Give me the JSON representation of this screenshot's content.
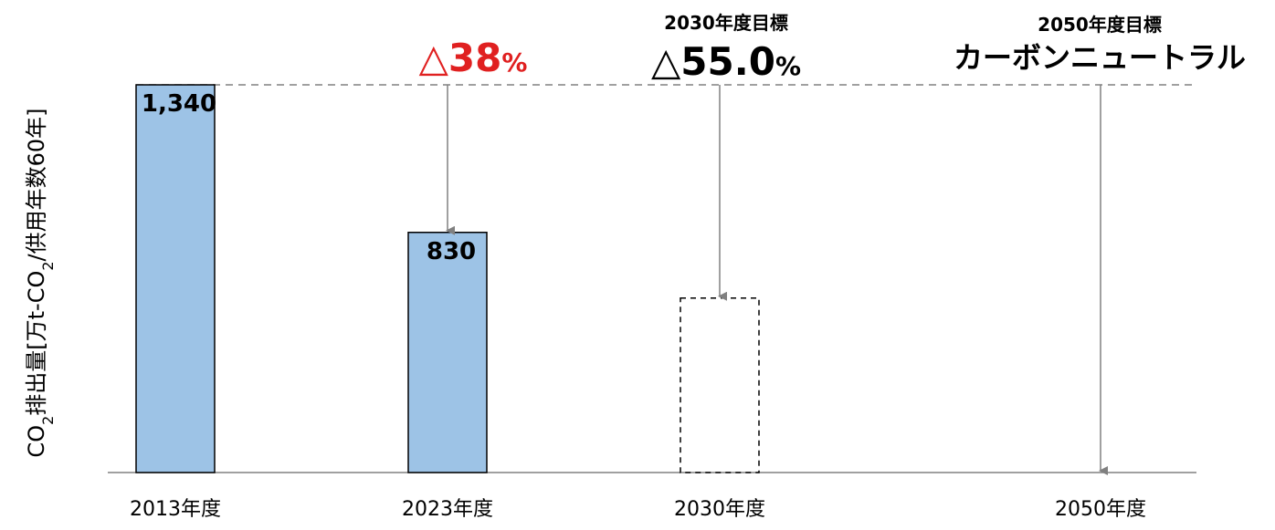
{
  "chart_data": {
    "type": "bar",
    "title": "",
    "ylabel": {
      "prefix": "CO",
      "sub": "2",
      "middle": "排出量[万t-CO",
      "sub2": "2",
      "suffix": "/供用年数60年]"
    },
    "xlabel": "",
    "ylim": [
      0,
      1340
    ],
    "grid": false,
    "categories": [
      "2013年度",
      "2023年度",
      "2030年度",
      "2050年度"
    ],
    "values": [
      1340,
      830,
      603,
      0
    ],
    "value_labels": [
      "1,340",
      "830",
      "",
      ""
    ],
    "bar_style": [
      "solid",
      "solid",
      "dashed",
      "none"
    ],
    "colors": {
      "bar_fill": "#9dc3e6",
      "bar_stroke": "#000000",
      "arrow": "#808080",
      "reference_line": "#808080",
      "highlight": "#e02020"
    },
    "reference_line_value": 1340,
    "annotations": [
      {
        "category": "2023年度",
        "heading": "",
        "text_main": "△38",
        "text_unit": "%",
        "color": "#e02020"
      },
      {
        "category": "2030年度",
        "heading": "2030年度目標",
        "text_main": "△55.0",
        "text_unit": "%",
        "color": "#000000"
      },
      {
        "category": "2050年度",
        "heading": "2050年度目標",
        "text_main": "カーボンニュートラル",
        "text_unit": "",
        "color": "#000000"
      }
    ]
  }
}
